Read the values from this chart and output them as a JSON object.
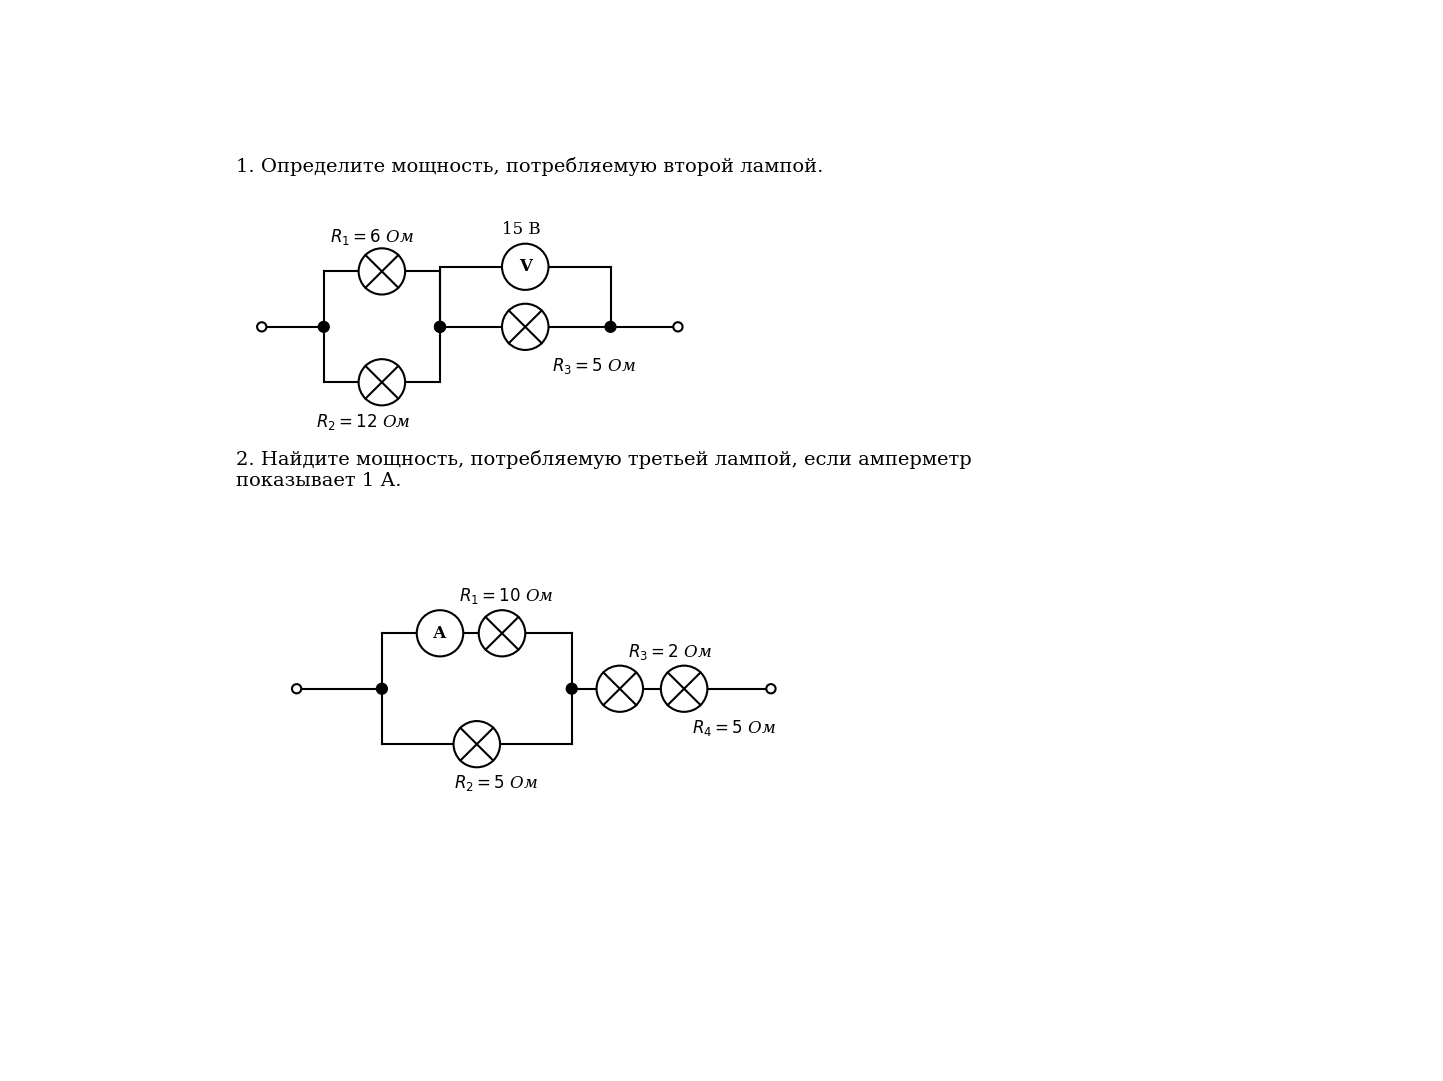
{
  "title1": "1. Определите мощность, потребляемую второй лампой.",
  "title2": "2. Найдите мощность, потребляемую третьей лампой, если амперметр\nпоказывает 1 А.",
  "bg_color": "#ffffff",
  "text_color": "#000000",
  "circuit1": {
    "R1_label": "$R_1 = 6$ Ом",
    "R2_label": "$R_2 = 12$ Ом",
    "R3_label": "$R_3 = 5$ Ом",
    "V_label": "15 В"
  },
  "circuit2": {
    "R1_label": "$R_1 = 10$ Ом",
    "R2_label": "$R_2 = 5$ Ом",
    "R3_label": "$R_3 = 2$ Ом",
    "R4_label": "$R_4 = 5$ Ом"
  }
}
